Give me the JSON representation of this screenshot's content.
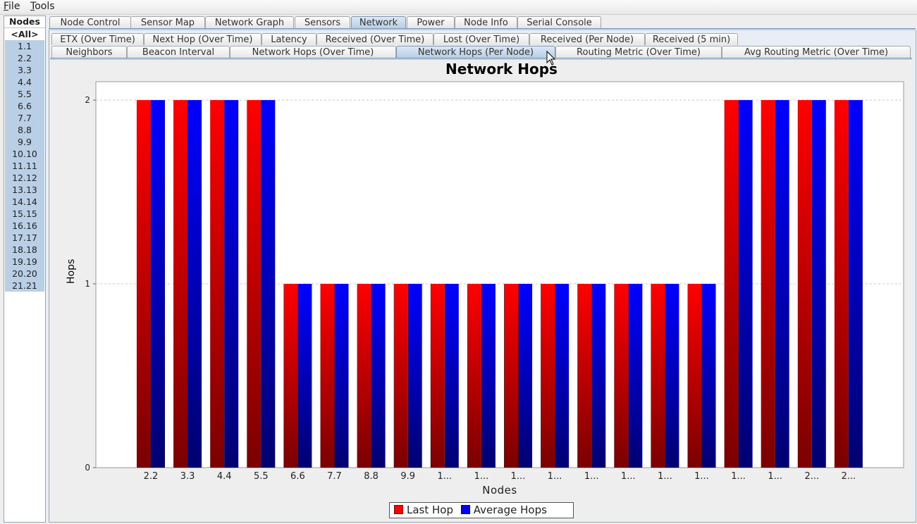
{
  "menubar": {
    "file": "File",
    "tools": "Tools"
  },
  "nodes": {
    "header": "Nodes",
    "items": [
      "<All>",
      "1.1",
      "2.2",
      "3.3",
      "4.4",
      "5.5",
      "6.6",
      "7.7",
      "8.8",
      "9.9",
      "10.10",
      "11.11",
      "12.12",
      "13.13",
      "14.14",
      "15.15",
      "16.16",
      "17.17",
      "18.18",
      "19.19",
      "20.20",
      "21.21"
    ]
  },
  "main_tabs": [
    "Node Control",
    "Sensor Map",
    "Network Graph",
    "Sensors",
    "Network",
    "Power",
    "Node Info",
    "Serial Console"
  ],
  "main_tab_active": "Network",
  "sub_tabs_row1": [
    "ETX (Over Time)",
    "Next Hop (Over Time)",
    "Latency",
    "Received (Over Time)",
    "Lost (Over Time)",
    "Received (Per Node)",
    "Received (5 min)"
  ],
  "sub_tabs_row2": [
    "Neighbors",
    "Beacon Interval",
    "Network Hops (Over Time)",
    "Network Hops (Per Node)",
    "Routing Metric (Over Time)",
    "Avg Routing Metric (Over Time)"
  ],
  "sub_tab_active": "Network Hops (Per Node)",
  "chart_data": {
    "type": "bar",
    "title": "Network Hops",
    "xlabel": "Nodes",
    "ylabel": "Hops",
    "ylim": [
      0,
      2.1
    ],
    "yticks": [
      0,
      1,
      2
    ],
    "grid": true,
    "legend_position": "bottom",
    "categories": [
      "2.2",
      "3.3",
      "4.4",
      "5.5",
      "6.6",
      "7.7",
      "8.8",
      "9.9",
      "1...",
      "1...",
      "1...",
      "1...",
      "1...",
      "1...",
      "1...",
      "1...",
      "1...",
      "1...",
      "2...",
      "2..."
    ],
    "series": [
      {
        "name": "Last Hop",
        "color": "#ff0000",
        "values": [
          2,
          2,
          2,
          2,
          1,
          1,
          1,
          1,
          1,
          1,
          1,
          1,
          1,
          1,
          1,
          1,
          2,
          2,
          2,
          2
        ]
      },
      {
        "name": "Average Hops",
        "color": "#0000ff",
        "values": [
          2,
          2,
          2,
          2,
          1,
          1,
          1,
          1,
          1,
          1,
          1,
          1,
          1,
          1,
          1,
          1,
          2,
          2,
          2,
          2
        ]
      }
    ]
  }
}
